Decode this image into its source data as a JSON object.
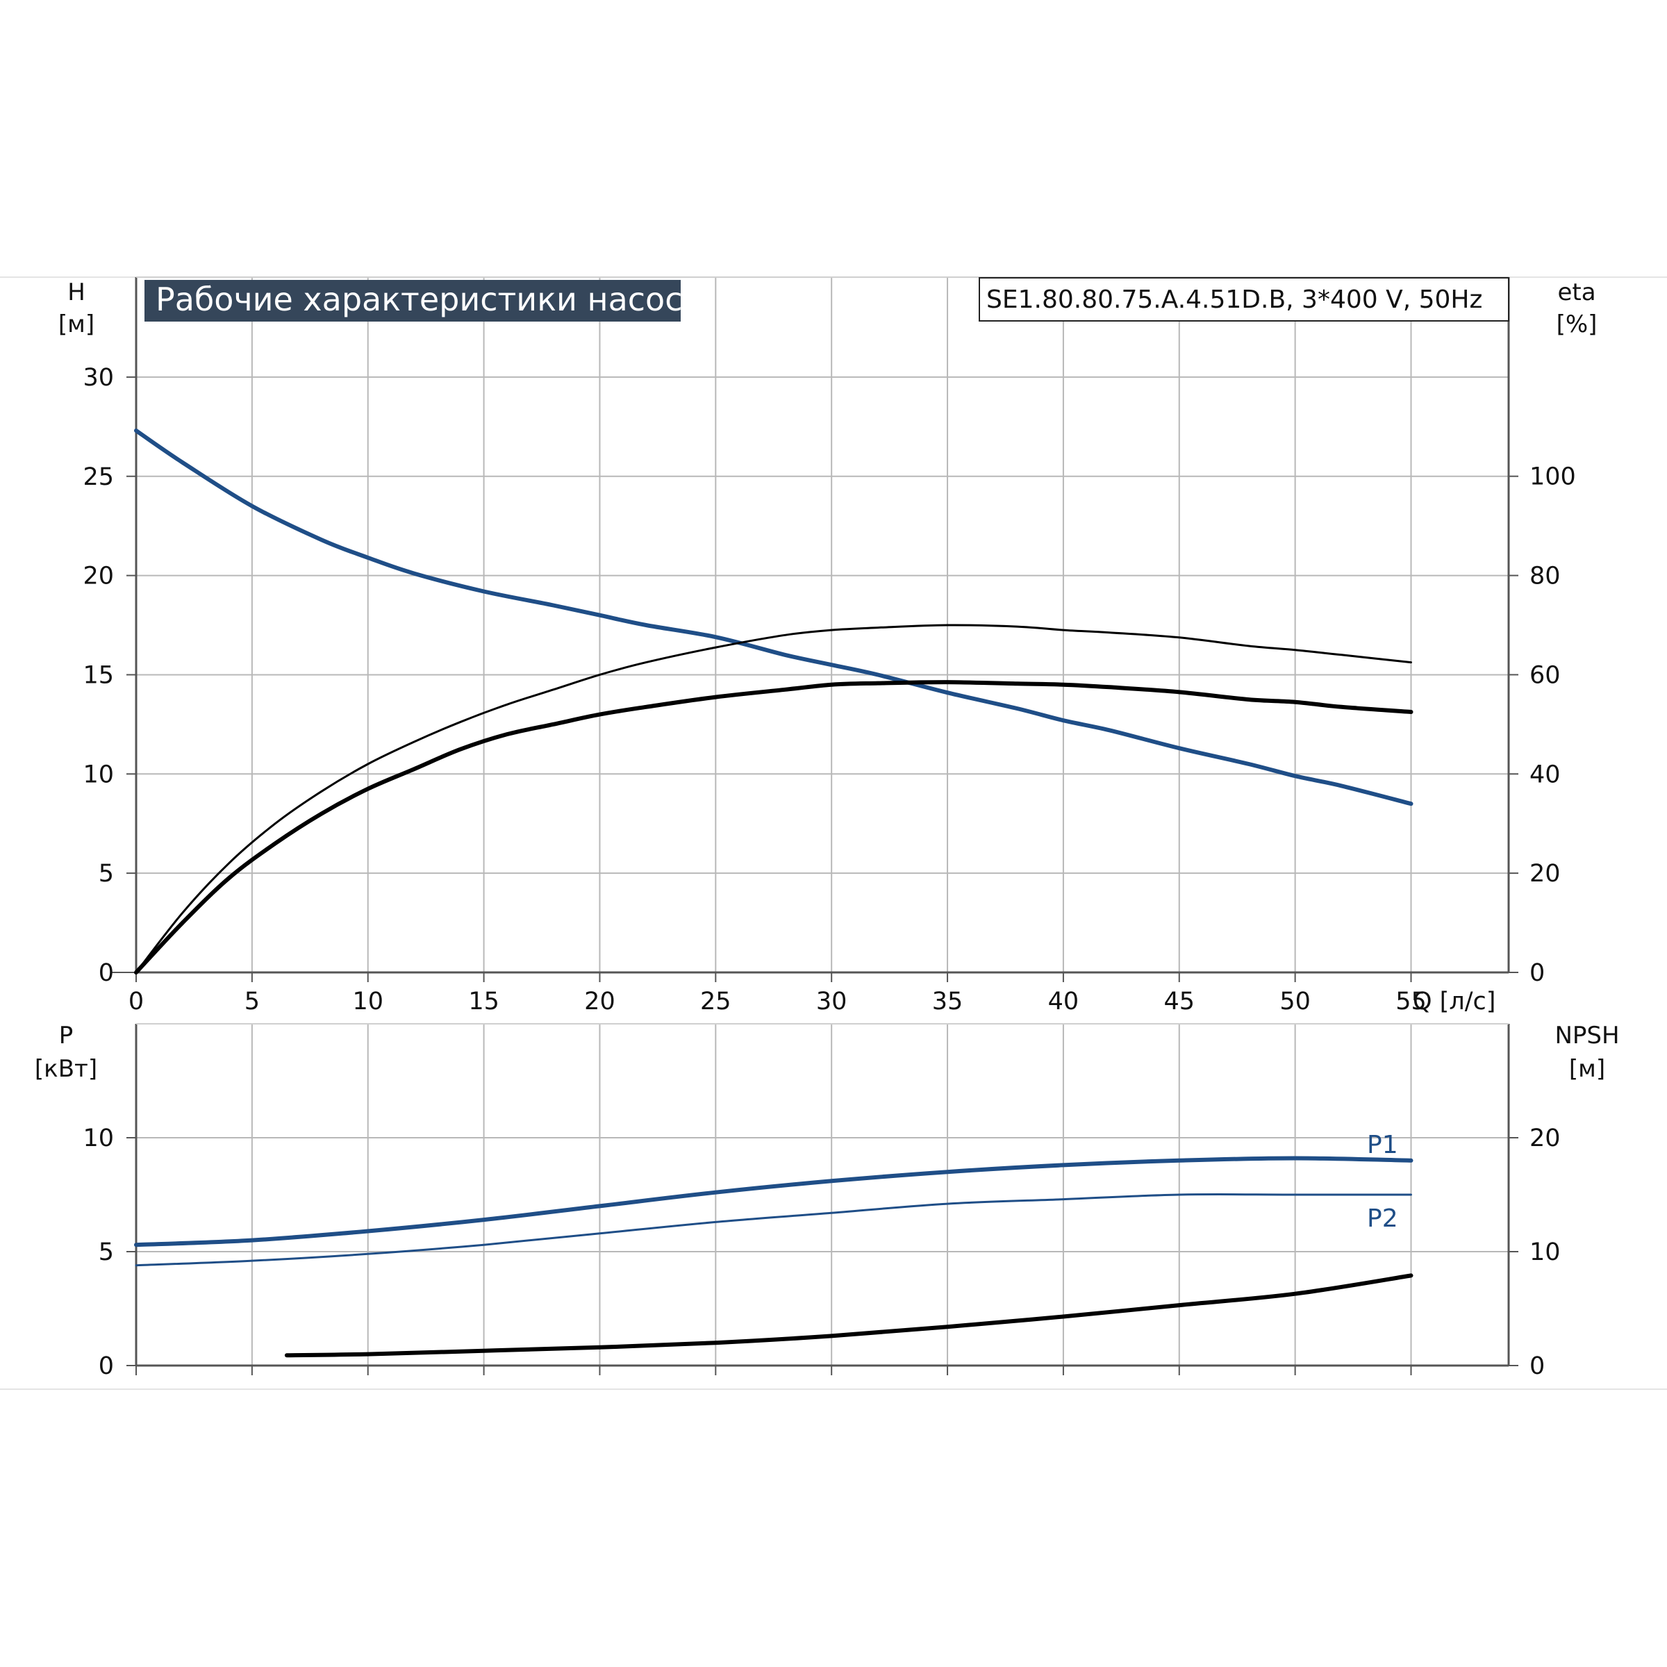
{
  "chart_data": [
    {
      "type": "line",
      "title": "Рабочие характеристики насоса",
      "model_label": "SE1.80.80.75.A.4.51D.B, 3*400 V, 50Hz",
      "xlabel": "Q [л/с]",
      "xlim": [
        0,
        60
      ],
      "x_ticks": [
        "0",
        "5",
        "10",
        "15",
        "20",
        "25",
        "30",
        "35",
        "40",
        "45",
        "50",
        "55"
      ],
      "y_left": {
        "label_line1": "H",
        "label_line2": "[м]",
        "lim": [
          0,
          35
        ],
        "ticks": [
          "0",
          "5",
          "10",
          "15",
          "20",
          "25",
          "30"
        ]
      },
      "y_right": {
        "label_line1": "eta",
        "label_line2": "[%]",
        "lim": [
          0,
          140
        ],
        "ticks": [
          "0",
          "20",
          "40",
          "60",
          "80",
          "100"
        ]
      },
      "grid": true,
      "series": [
        {
          "axis": "left",
          "color": "#1f4e87",
          "x": [
            0,
            2,
            5,
            8,
            10,
            12,
            15,
            18,
            20,
            22,
            25,
            28,
            30,
            32,
            35,
            38,
            40,
            42,
            45,
            48,
            50,
            52,
            55
          ],
          "y": [
            27.3,
            25.7,
            23.5,
            21.8,
            20.9,
            20.1,
            19.2,
            18.5,
            18.0,
            17.5,
            16.9,
            16.0,
            15.5,
            15.0,
            14.1,
            13.3,
            12.7,
            12.2,
            11.3,
            10.5,
            9.9,
            9.4,
            8.5
          ]
        },
        {
          "axis": "right",
          "color": "#000000",
          "x": [
            0,
            2,
            4,
            6,
            8,
            10,
            12,
            14,
            16,
            18,
            20,
            22,
            25,
            28,
            30,
            32,
            35,
            38,
            40,
            42,
            45,
            48,
            50,
            52,
            55
          ],
          "y": [
            0,
            10,
            19,
            26,
            32,
            37,
            41,
            45,
            48,
            50,
            52,
            53.5,
            55.5,
            57,
            58,
            58.3,
            58.5,
            58.2,
            58,
            57.5,
            56.5,
            55,
            54.5,
            53.5,
            52.5
          ]
        },
        {
          "axis": "right",
          "color": "#000000",
          "x": [
            0,
            2,
            4,
            6,
            8,
            10,
            12,
            14,
            16,
            18,
            20,
            22,
            25,
            28,
            30,
            32,
            35,
            38,
            40,
            42,
            45,
            48,
            50,
            52,
            55
          ],
          "y": [
            0,
            12,
            22,
            30,
            36.5,
            42,
            46.5,
            50.5,
            54,
            57,
            60,
            62.5,
            65.5,
            68,
            69,
            69.5,
            70,
            69.7,
            69,
            68.5,
            67.5,
            65.8,
            65,
            64,
            62.5
          ]
        }
      ]
    },
    {
      "type": "line",
      "xlim": [
        0,
        60
      ],
      "y_left": {
        "label_line1": "P",
        "label_line2": "[кВт]",
        "lim": [
          0,
          15
        ],
        "ticks": [
          "0",
          "5",
          "10"
        ]
      },
      "y_right": {
        "label_line1": "NPSH",
        "label_line2": "[м]",
        "lim": [
          0,
          30
        ],
        "ticks": [
          "0",
          "10",
          "20"
        ]
      },
      "grid": true,
      "series": [
        {
          "name": "P1",
          "axis": "left",
          "color": "#1f4e87",
          "x": [
            0,
            5,
            10,
            15,
            20,
            25,
            30,
            35,
            40,
            45,
            50,
            55
          ],
          "y": [
            5.3,
            5.5,
            5.9,
            6.4,
            7.0,
            7.6,
            8.1,
            8.5,
            8.8,
            9.0,
            9.1,
            9.0
          ]
        },
        {
          "name": "P2",
          "axis": "left",
          "color": "#1f4e87",
          "x": [
            0,
            5,
            10,
            15,
            20,
            25,
            30,
            35,
            40,
            45,
            50,
            55
          ],
          "y": [
            4.4,
            4.6,
            4.9,
            5.3,
            5.8,
            6.3,
            6.7,
            7.1,
            7.3,
            7.5,
            7.5,
            7.5
          ]
        },
        {
          "axis": "right",
          "color": "#000000",
          "x": [
            6.5,
            10,
            15,
            20,
            25,
            30,
            35,
            40,
            45,
            50,
            55
          ],
          "y": [
            0.9,
            1.0,
            1.3,
            1.6,
            2.0,
            2.6,
            3.4,
            4.3,
            5.3,
            6.3,
            7.9
          ]
        }
      ]
    }
  ]
}
